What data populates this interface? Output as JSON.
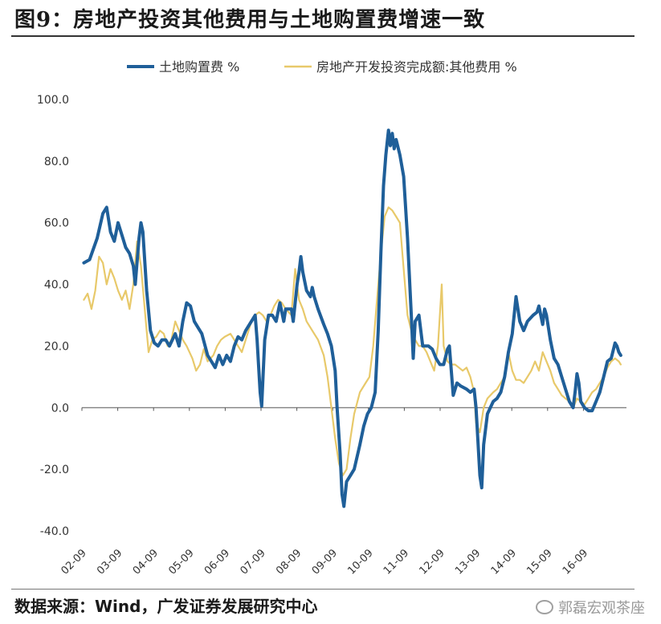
{
  "title": "图9：房地产投资其他费用与土地购置费增速一致",
  "source": "数据来源：Wind，广发证券发展研究中心",
  "watermark": "郭磊宏观茶座",
  "watermark_icon": "wechat-icon",
  "colors": {
    "land": "#1f5f99",
    "other": "#e8c96a",
    "axis": "#333333"
  },
  "chart_data": {
    "type": "line",
    "title": "",
    "xlabel": "",
    "ylabel": "",
    "ylim": [
      -40,
      100
    ],
    "yticks": [
      "100.0",
      "80.0",
      "60.0",
      "40.0",
      "20.0",
      "0.0",
      "-20.0",
      "-40.0"
    ],
    "xticks": [
      "02-09",
      "03-09",
      "04-09",
      "05-09",
      "06-09",
      "07-09",
      "08-09",
      "09-09",
      "10-09",
      "11-09",
      "12-09",
      "13-09",
      "14-09",
      "15-09",
      "16-09"
    ],
    "legend_position": "top",
    "grid": false,
    "series": [
      {
        "name": "土地购置费 %",
        "color": "#1f5f99",
        "points": [
          [
            2002.05,
            47
          ],
          [
            2002.2,
            48
          ],
          [
            2002.4,
            55
          ],
          [
            2002.55,
            63
          ],
          [
            2002.65,
            65
          ],
          [
            2002.75,
            57
          ],
          [
            2002.85,
            54
          ],
          [
            2002.95,
            60
          ],
          [
            2003.05,
            56
          ],
          [
            2003.15,
            52
          ],
          [
            2003.25,
            50
          ],
          [
            2003.35,
            46
          ],
          [
            2003.4,
            40
          ],
          [
            2003.5,
            55
          ],
          [
            2003.55,
            60
          ],
          [
            2003.6,
            57
          ],
          [
            2003.7,
            38
          ],
          [
            2003.8,
            25
          ],
          [
            2003.9,
            21
          ],
          [
            2004.0,
            20
          ],
          [
            2004.1,
            22
          ],
          [
            2004.2,
            22
          ],
          [
            2004.3,
            20
          ],
          [
            2004.45,
            24
          ],
          [
            2004.55,
            20
          ],
          [
            2004.65,
            28
          ],
          [
            2004.75,
            34
          ],
          [
            2004.85,
            33
          ],
          [
            2004.95,
            28
          ],
          [
            2005.05,
            26
          ],
          [
            2005.15,
            24
          ],
          [
            2005.3,
            17
          ],
          [
            2005.4,
            15
          ],
          [
            2005.5,
            13
          ],
          [
            2005.6,
            17
          ],
          [
            2005.7,
            14
          ],
          [
            2005.8,
            17
          ],
          [
            2005.9,
            15
          ],
          [
            2006.0,
            20
          ],
          [
            2006.1,
            23
          ],
          [
            2006.2,
            22
          ],
          [
            2006.3,
            25
          ],
          [
            2006.45,
            28
          ],
          [
            2006.55,
            30
          ],
          [
            2006.6,
            22
          ],
          [
            2006.68,
            5
          ],
          [
            2006.72,
            0.5
          ],
          [
            2006.8,
            22
          ],
          [
            2006.9,
            30
          ],
          [
            2007.0,
            30
          ],
          [
            2007.1,
            28
          ],
          [
            2007.2,
            34
          ],
          [
            2007.3,
            28
          ],
          [
            2007.35,
            32
          ],
          [
            2007.5,
            32
          ],
          [
            2007.55,
            28
          ],
          [
            2007.65,
            40
          ],
          [
            2007.7,
            44
          ],
          [
            2007.75,
            49
          ],
          [
            2007.8,
            44
          ],
          [
            2007.9,
            38
          ],
          [
            2008.0,
            36
          ],
          [
            2008.05,
            39
          ],
          [
            2008.1,
            36
          ],
          [
            2008.2,
            32
          ],
          [
            2008.35,
            27
          ],
          [
            2008.45,
            24
          ],
          [
            2008.55,
            20
          ],
          [
            2008.65,
            12
          ],
          [
            2008.7,
            0
          ],
          [
            2008.78,
            -15
          ],
          [
            2008.83,
            -28
          ],
          [
            2008.88,
            -32
          ],
          [
            2008.95,
            -24
          ],
          [
            2009.05,
            -22
          ],
          [
            2009.15,
            -20
          ],
          [
            2009.3,
            -12
          ],
          [
            2009.4,
            -6
          ],
          [
            2009.5,
            -2
          ],
          [
            2009.6,
            0
          ],
          [
            2009.7,
            5
          ],
          [
            2009.78,
            25
          ],
          [
            2009.85,
            50
          ],
          [
            2009.92,
            72
          ],
          [
            2009.98,
            82
          ],
          [
            2010.05,
            90
          ],
          [
            2010.1,
            85
          ],
          [
            2010.15,
            89
          ],
          [
            2010.2,
            84
          ],
          [
            2010.25,
            87
          ],
          [
            2010.35,
            82
          ],
          [
            2010.45,
            75
          ],
          [
            2010.55,
            55
          ],
          [
            2010.65,
            30
          ],
          [
            2010.7,
            16
          ],
          [
            2010.75,
            28
          ],
          [
            2010.85,
            30
          ],
          [
            2010.95,
            20
          ],
          [
            2011.1,
            20
          ],
          [
            2011.2,
            19
          ],
          [
            2011.3,
            16
          ],
          [
            2011.4,
            14
          ],
          [
            2011.5,
            14
          ],
          [
            2011.6,
            19
          ],
          [
            2011.65,
            20
          ],
          [
            2011.75,
            4
          ],
          [
            2011.85,
            8
          ],
          [
            2011.95,
            7
          ],
          [
            2012.1,
            6
          ],
          [
            2012.2,
            5
          ],
          [
            2012.3,
            6
          ],
          [
            2012.35,
            0
          ],
          [
            2012.45,
            -22
          ],
          [
            2012.5,
            -26
          ],
          [
            2012.55,
            -12
          ],
          [
            2012.65,
            -2
          ],
          [
            2012.8,
            2
          ],
          [
            2012.9,
            3
          ],
          [
            2013.0,
            5
          ],
          [
            2013.1,
            10
          ],
          [
            2013.2,
            18
          ],
          [
            2013.3,
            24
          ],
          [
            2013.4,
            36
          ],
          [
            2013.5,
            28
          ],
          [
            2013.6,
            25
          ],
          [
            2013.7,
            28
          ],
          [
            2013.85,
            30
          ],
          [
            2013.95,
            31
          ],
          [
            2014.0,
            33
          ],
          [
            2014.05,
            30
          ],
          [
            2014.1,
            27
          ],
          [
            2014.15,
            32
          ],
          [
            2014.2,
            30
          ],
          [
            2014.3,
            22
          ],
          [
            2014.4,
            16
          ],
          [
            2014.5,
            14
          ],
          [
            2014.6,
            10
          ],
          [
            2014.7,
            6
          ],
          [
            2014.8,
            2
          ],
          [
            2014.9,
            0
          ],
          [
            2014.95,
            5
          ],
          [
            2015.0,
            11
          ],
          [
            2015.05,
            8
          ],
          [
            2015.1,
            2
          ],
          [
            2015.2,
            0
          ],
          [
            2015.3,
            -1
          ],
          [
            2015.4,
            -1
          ],
          [
            2015.5,
            2
          ],
          [
            2015.6,
            5
          ],
          [
            2015.7,
            10
          ],
          [
            2015.8,
            15
          ],
          [
            2015.9,
            16
          ],
          [
            2016.0,
            21
          ],
          [
            2016.05,
            20
          ],
          [
            2016.1,
            18
          ],
          [
            2016.15,
            17
          ]
        ]
      },
      {
        "name": "房地产开发投资完成额:其他费用 %",
        "color": "#e8c96a",
        "points": [
          [
            2002.05,
            35
          ],
          [
            2002.15,
            37
          ],
          [
            2002.25,
            32
          ],
          [
            2002.35,
            38
          ],
          [
            2002.45,
            49
          ],
          [
            2002.55,
            47
          ],
          [
            2002.65,
            40
          ],
          [
            2002.75,
            45
          ],
          [
            2002.85,
            42
          ],
          [
            2002.95,
            38
          ],
          [
            2003.05,
            35
          ],
          [
            2003.15,
            38
          ],
          [
            2003.25,
            32
          ],
          [
            2003.35,
            40
          ],
          [
            2003.45,
            54
          ],
          [
            2003.55,
            46
          ],
          [
            2003.65,
            32
          ],
          [
            2003.75,
            18
          ],
          [
            2003.85,
            22
          ],
          [
            2003.95,
            23
          ],
          [
            2004.05,
            25
          ],
          [
            2004.15,
            24
          ],
          [
            2004.25,
            20
          ],
          [
            2004.35,
            22
          ],
          [
            2004.45,
            28
          ],
          [
            2004.55,
            25
          ],
          [
            2004.65,
            22
          ],
          [
            2004.75,
            20
          ],
          [
            2004.9,
            16
          ],
          [
            2005.0,
            12
          ],
          [
            2005.1,
            14
          ],
          [
            2005.2,
            19
          ],
          [
            2005.3,
            15
          ],
          [
            2005.45,
            17
          ],
          [
            2005.55,
            20
          ],
          [
            2005.65,
            22
          ],
          [
            2005.75,
            23
          ],
          [
            2005.9,
            24
          ],
          [
            2006.0,
            22
          ],
          [
            2006.1,
            20
          ],
          [
            2006.2,
            18
          ],
          [
            2006.3,
            22
          ],
          [
            2006.45,
            28
          ],
          [
            2006.55,
            30
          ],
          [
            2006.65,
            31
          ],
          [
            2006.75,
            30
          ],
          [
            2006.85,
            28
          ],
          [
            2006.95,
            30
          ],
          [
            2007.05,
            33
          ],
          [
            2007.15,
            35
          ],
          [
            2007.25,
            34
          ],
          [
            2007.35,
            32
          ],
          [
            2007.5,
            30
          ],
          [
            2007.6,
            45
          ],
          [
            2007.7,
            35
          ],
          [
            2007.8,
            32
          ],
          [
            2007.9,
            28
          ],
          [
            2008.0,
            26
          ],
          [
            2008.1,
            24
          ],
          [
            2008.2,
            22
          ],
          [
            2008.35,
            17
          ],
          [
            2008.45,
            10
          ],
          [
            2008.55,
            0
          ],
          [
            2008.65,
            -10
          ],
          [
            2008.75,
            -18
          ],
          [
            2008.85,
            -22
          ],
          [
            2008.95,
            -20
          ],
          [
            2009.05,
            -10
          ],
          [
            2009.15,
            -2
          ],
          [
            2009.3,
            5
          ],
          [
            2009.45,
            8
          ],
          [
            2009.55,
            10
          ],
          [
            2009.65,
            20
          ],
          [
            2009.75,
            35
          ],
          [
            2009.85,
            50
          ],
          [
            2009.95,
            62
          ],
          [
            2010.05,
            65
          ],
          [
            2010.15,
            64
          ],
          [
            2010.25,
            62
          ],
          [
            2010.35,
            60
          ],
          [
            2010.45,
            45
          ],
          [
            2010.55,
            30
          ],
          [
            2010.65,
            25
          ],
          [
            2010.75,
            22
          ],
          [
            2010.85,
            20
          ],
          [
            2010.95,
            20
          ],
          [
            2011.05,
            18
          ],
          [
            2011.15,
            15
          ],
          [
            2011.25,
            12
          ],
          [
            2011.35,
            20
          ],
          [
            2011.45,
            40
          ],
          [
            2011.5,
            20
          ],
          [
            2011.6,
            15
          ],
          [
            2011.7,
            14
          ],
          [
            2011.8,
            14
          ],
          [
            2011.9,
            13
          ],
          [
            2012.0,
            12
          ],
          [
            2012.1,
            13
          ],
          [
            2012.2,
            10
          ],
          [
            2012.3,
            5
          ],
          [
            2012.35,
            -5
          ],
          [
            2012.45,
            -8
          ],
          [
            2012.55,
            0
          ],
          [
            2012.65,
            3
          ],
          [
            2012.8,
            5
          ],
          [
            2012.9,
            6
          ],
          [
            2013.0,
            8
          ],
          [
            2013.1,
            10
          ],
          [
            2013.2,
            18
          ],
          [
            2013.3,
            12
          ],
          [
            2013.4,
            9
          ],
          [
            2013.5,
            9
          ],
          [
            2013.6,
            8
          ],
          [
            2013.7,
            10
          ],
          [
            2013.8,
            12
          ],
          [
            2013.9,
            15
          ],
          [
            2014.0,
            12
          ],
          [
            2014.1,
            18
          ],
          [
            2014.2,
            15
          ],
          [
            2014.3,
            12
          ],
          [
            2014.4,
            8
          ],
          [
            2014.5,
            6
          ],
          [
            2014.6,
            4
          ],
          [
            2014.7,
            3
          ],
          [
            2014.8,
            2
          ],
          [
            2014.9,
            0
          ],
          [
            2015.0,
            3
          ],
          [
            2015.1,
            2
          ],
          [
            2015.2,
            1
          ],
          [
            2015.3,
            3
          ],
          [
            2015.4,
            5
          ],
          [
            2015.5,
            6
          ],
          [
            2015.6,
            8
          ],
          [
            2015.7,
            10
          ],
          [
            2015.8,
            13
          ],
          [
            2015.9,
            15
          ],
          [
            2016.0,
            16
          ],
          [
            2016.1,
            15
          ],
          [
            2016.15,
            14
          ]
        ]
      }
    ]
  }
}
